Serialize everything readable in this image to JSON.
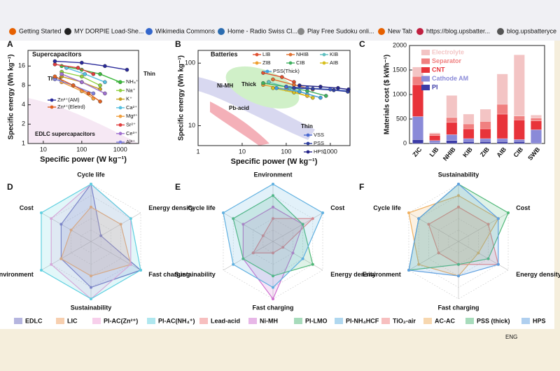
{
  "bookmarks": [
    "Getting Started",
    "MY DORPIE Load-She...",
    "Wikimedia Commons",
    "Home - Radio Swiss Cl...",
    "Play Free Sudoku onli...",
    "New Tab",
    "https://blog.upsbatter...",
    "blog.upsbatteryce"
  ],
  "taskbar": {
    "lang": "ENG"
  },
  "panels": [
    {
      "type": "line",
      "letter": "A",
      "title": "Supercapacitors",
      "xlabel": "Specific power (W kg⁻¹)",
      "ylabel": "Specific energy (Wh kg⁻¹)",
      "log": true,
      "xlim": [
        4,
        3000
      ],
      "ylim": [
        1,
        28
      ],
      "xticks": [
        10,
        100,
        1000
      ],
      "yticks": [
        1,
        2,
        4,
        8,
        16
      ],
      "annotations": [
        "Thick",
        "Thin",
        "EDLC supercapacitors"
      ],
      "series": [
        {
          "name": "NH₄⁺",
          "color": "#3cb83c",
          "x": [
            30,
            100,
            300,
            1000
          ],
          "y": [
            16,
            14,
            12,
            9
          ]
        },
        {
          "name": "Na⁺",
          "color": "#8fd040",
          "x": [
            30,
            100,
            300
          ],
          "y": [
            13,
            11,
            8
          ]
        },
        {
          "name": "K⁺",
          "color": "#c8a020",
          "x": [
            30,
            100,
            300
          ],
          "y": [
            11,
            9,
            7
          ]
        },
        {
          "name": "Ca²⁺",
          "color": "#55c0e0",
          "x": [
            40,
            120,
            400
          ],
          "y": [
            15,
            12,
            9
          ]
        },
        {
          "name": "Mg²⁺",
          "color": "#f0a040",
          "x": [
            30,
            100,
            200
          ],
          "y": [
            9,
            6.5,
            5
          ]
        },
        {
          "name": "Sr²⁺",
          "color": "#e03c3c",
          "x": [
            20,
            80,
            200
          ],
          "y": [
            17,
            15,
            12
          ]
        },
        {
          "name": "Ce³⁺",
          "color": "#a070d0",
          "x": [
            30,
            100,
            400
          ],
          "y": [
            12,
            9,
            6
          ]
        },
        {
          "name": "Al³⁺",
          "color": "#8080e0",
          "x": [
            20,
            60,
            200
          ],
          "y": [
            10,
            8,
            6
          ]
        },
        {
          "name": "Zn²⁺(AM)",
          "color": "#2a2a9a",
          "x": [
            20,
            100,
            400,
            1500
          ],
          "y": [
            19,
            18,
            16,
            14
          ]
        },
        {
          "name": "Zn²⁺(Eletrd)",
          "color": "#e06020",
          "x": [
            20,
            60,
            150,
            300
          ],
          "y": [
            11,
            8,
            6,
            4.5
          ]
        }
      ]
    },
    {
      "type": "line",
      "letter": "B",
      "title": "Batteries",
      "xlabel": "Specific power (W kg⁻¹)",
      "ylabel": "Specific energy (Wh kg⁻¹)",
      "log": true,
      "xlim": [
        1,
        2800
      ],
      "ylim": [
        4.8,
        160
      ],
      "xticks": [
        1,
        10,
        100,
        1000
      ],
      "yticks": [
        10,
        100
      ],
      "annotations": [
        "Thick",
        "Thin",
        "Ni-MH",
        "Pb-acid"
      ],
      "series": [
        {
          "name": "LIB",
          "color": "#e05030",
          "x": [
            30,
            80,
            150
          ],
          "y": [
            70,
            60,
            50
          ]
        },
        {
          "name": "NHIB",
          "color": "#e07030",
          "x": [
            50,
            150,
            400
          ],
          "y": [
            55,
            45,
            38
          ]
        },
        {
          "name": "KIB",
          "color": "#60c0c0",
          "x": [
            40,
            120,
            300
          ],
          "y": [
            50,
            40,
            32
          ]
        },
        {
          "name": "ZIB",
          "color": "#f0a030",
          "x": [
            30,
            100,
            300
          ],
          "y": [
            45,
            38,
            30
          ]
        },
        {
          "name": "CIB",
          "color": "#40b060",
          "x": [
            30,
            100,
            300,
            800
          ],
          "y": [
            48,
            42,
            36,
            30
          ]
        },
        {
          "name": "AIB",
          "color": "#d8c020",
          "x": [
            50,
            150,
            400
          ],
          "y": [
            40,
            34,
            28
          ]
        },
        {
          "name": "PSS(Thick)",
          "color": "#40a0e0",
          "x": [
            60,
            200,
            600
          ],
          "y": [
            40,
            35,
            28
          ]
        },
        {
          "name": "VSS",
          "color": "#4a6ad0",
          "x": [
            100,
            300,
            1000,
            2500
          ],
          "y": [
            42,
            40,
            38,
            36
          ]
        },
        {
          "name": "PSS",
          "color": "#3040a0",
          "x": [
            150,
            400,
            1200,
            2500
          ],
          "y": [
            40,
            39,
            37,
            35
          ]
        },
        {
          "name": "HPS",
          "color": "#26268a",
          "x": [
            200,
            600,
            1500,
            2600
          ],
          "y": [
            44,
            42,
            40,
            38
          ]
        }
      ]
    },
    {
      "type": "bar",
      "letter": "C",
      "ylabel": "Materials cost ($ kWh⁻¹)",
      "ylim": [
        0,
        2000
      ],
      "yticks": [
        0,
        500,
        1000,
        1500,
        2000
      ],
      "categories": [
        "ZIC",
        "LIB",
        "NHIB",
        "KIB",
        "ZIB",
        "AIB",
        "CIB",
        "SWB"
      ],
      "series": [
        {
          "name": "PI",
          "color": "#3c3ca8",
          "values": [
            80,
            20,
            60,
            40,
            40,
            40,
            40,
            0
          ]
        },
        {
          "name": "Cathode AM",
          "color": "#8a8ad8",
          "values": [
            470,
            40,
            120,
            60,
            60,
            60,
            40,
            280
          ]
        },
        {
          "name": "CNT",
          "color": "#e8333a",
          "values": [
            650,
            100,
            250,
            200,
            200,
            500,
            400,
            180
          ]
        },
        {
          "name": "Separator",
          "color": "#f08080",
          "values": [
            170,
            40,
            100,
            100,
            150,
            200,
            80,
            60
          ]
        },
        {
          "name": "Electrolyte",
          "color": "#f3c4c4",
          "values": [
            190,
            20,
            450,
            200,
            250,
            620,
            1250,
            60
          ]
        }
      ]
    },
    {
      "type": "radar",
      "letter": "D",
      "rmax": 5,
      "axes": [
        "Cycle life",
        "Energy density",
        "Fast charging",
        "Sustainability",
        "Environment",
        "Cost"
      ],
      "series": [
        {
          "name": "EDLC",
          "color": "#6b6bc0",
          "values": [
            5,
            1,
            5,
            4,
            3,
            3
          ]
        },
        {
          "name": "LIC",
          "color": "#f0a060",
          "values": [
            3,
            3,
            4,
            3,
            3,
            2
          ]
        },
        {
          "name": "PI-AC(Zn²⁺)",
          "color": "#f0a0d8",
          "values": [
            5,
            4,
            4,
            5,
            4,
            4
          ]
        },
        {
          "name": "PI-AC(NH₄⁺)",
          "color": "#60d0e0",
          "values": [
            5,
            4,
            5,
            5,
            5,
            5
          ]
        }
      ]
    },
    {
      "type": "radar",
      "letter": "E",
      "rmax": 5,
      "axes": [
        "Environment",
        "Cost",
        "Energy density",
        "Fast charging",
        "Sustainability",
        "Cycle life"
      ],
      "series": [
        {
          "name": "Lead-acid",
          "color": "#f08080",
          "values": [
            2,
            4,
            1,
            1,
            2,
            1
          ]
        },
        {
          "name": "Ni-MH",
          "color": "#d070d0",
          "values": [
            3,
            3,
            2,
            5,
            3,
            3
          ]
        },
        {
          "name": "PI-LMO",
          "color": "#50b878",
          "values": [
            4,
            3,
            4,
            3,
            3,
            4
          ]
        },
        {
          "name": "PI-NH₄HCF",
          "color": "#60b0e0",
          "values": [
            5,
            5,
            3,
            4,
            4,
            5
          ]
        }
      ]
    },
    {
      "type": "radar",
      "letter": "F",
      "rmax": 5,
      "axes": [
        "Sustainability",
        "Cost",
        "Energy density",
        "Fast charging",
        "Environment",
        "Cycle life"
      ],
      "series": [
        {
          "name": "TiO₂-air",
          "color": "#f08080",
          "values": [
            3,
            3,
            4,
            2,
            2,
            3
          ]
        },
        {
          "name": "AC-AC",
          "color": "#f0b060",
          "values": [
            4,
            4,
            2,
            3,
            4,
            5
          ]
        },
        {
          "name": "PSS (thick)",
          "color": "#50b878",
          "values": [
            5,
            5,
            3,
            2,
            5,
            4
          ]
        },
        {
          "name": "HPS",
          "color": "#60a0e0",
          "values": [
            5,
            4,
            4,
            3,
            5,
            4
          ]
        }
      ]
    }
  ]
}
